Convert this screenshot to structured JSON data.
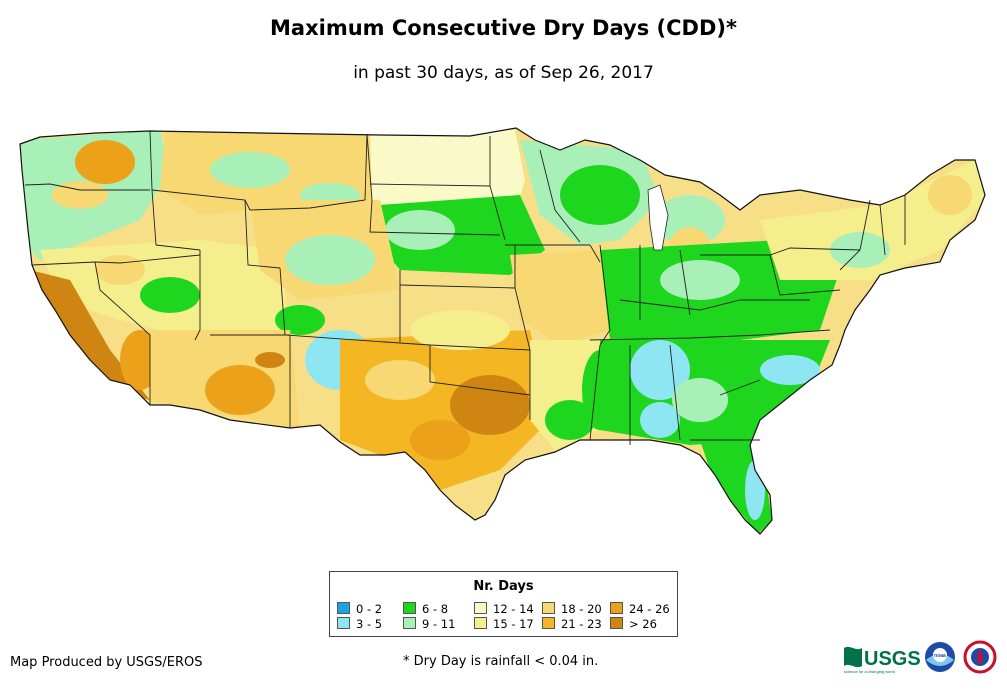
{
  "header": {
    "title": "Maximum Consecutive Dry Days (CDD)*",
    "subtitle": "in past 30 days, as of Sep 26, 2017"
  },
  "legend": {
    "title": "Nr. Days",
    "items": [
      {
        "label": "0 - 2",
        "color": "#1aa4e6"
      },
      {
        "label": "3 - 5",
        "color": "#8ee6f2"
      },
      {
        "label": "6 - 8",
        "color": "#1fd61f"
      },
      {
        "label": "9 - 11",
        "color": "#a8f0b8"
      },
      {
        "label": "12 - 14",
        "color": "#fafac8"
      },
      {
        "label": "15 - 17",
        "color": "#f5ee8c"
      },
      {
        "label": "18 - 20",
        "color": "#f7d872"
      },
      {
        "label": "21 - 23",
        "color": "#f4b622"
      },
      {
        "label": "24 - 26",
        "color": "#eba21a"
      },
      {
        "label": "> 26",
        "color": "#cf8512"
      }
    ]
  },
  "footer": {
    "credit": "Map Produced by USGS/EROS",
    "footnote": "* Dry Day is rainfall < 0.04 in.",
    "logos": {
      "usgs": "USGS",
      "usgs_tagline": "science for a changing world",
      "noaa": "noaa"
    }
  }
}
